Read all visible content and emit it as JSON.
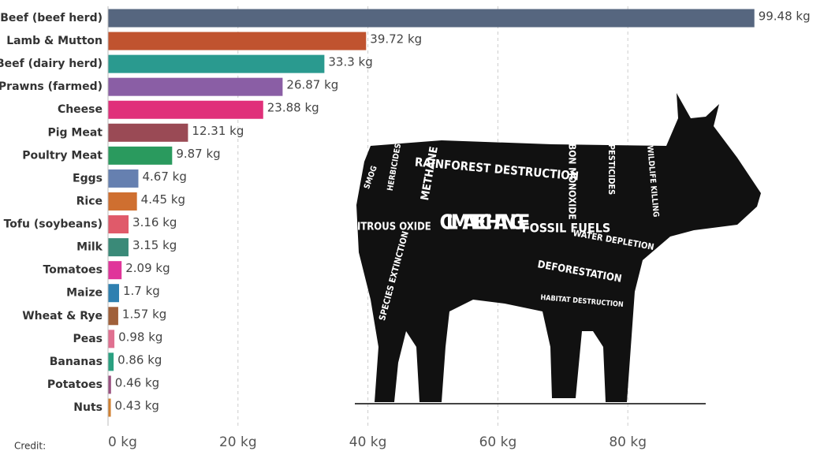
{
  "chart_data": {
    "type": "bar",
    "orientation": "horizontal",
    "categories": [
      "Beef (beef herd)",
      "Lamb & Mutton",
      "Beef (dairy herd)",
      "Prawns (farmed)",
      "Cheese",
      "Pig Meat",
      "Poultry Meat",
      "Eggs",
      "Rice",
      "Tofu (soybeans)",
      "Milk",
      "Tomatoes",
      "Maize",
      "Wheat & Rye",
      "Peas",
      "Bananas",
      "Potatoes",
      "Nuts"
    ],
    "values": [
      99.48,
      39.72,
      33.3,
      26.87,
      23.88,
      12.31,
      9.87,
      4.67,
      4.45,
      3.16,
      3.15,
      2.09,
      1.7,
      1.57,
      0.98,
      0.86,
      0.46,
      0.43
    ],
    "value_labels": [
      "99.48 kg",
      "39.72 kg",
      "33.3 kg",
      "26.87 kg",
      "23.88 kg",
      "12.31 kg",
      "9.87 kg",
      "4.67 kg",
      "4.45 kg",
      "3.16 kg",
      "3.15 kg",
      "2.09 kg",
      "1.7 kg",
      "1.57 kg",
      "0.98 kg",
      "0.86 kg",
      "0.46 kg",
      "0.43 kg"
    ],
    "colors": [
      "#56667f",
      "#c0532f",
      "#2a9a8f",
      "#8a5ea5",
      "#e0307a",
      "#9a4a55",
      "#2a9a5e",
      "#6680b0",
      "#cf6f30",
      "#e05a6a",
      "#3a8a78",
      "#e0359a",
      "#2f80b0",
      "#a0603a",
      "#e07090",
      "#2aa080",
      "#9a5080",
      "#d08030"
    ],
    "xlim": [
      0,
      100
    ],
    "xticks": [
      {
        "value": 0,
        "label": "0 kg"
      },
      {
        "value": 20,
        "label": "20 kg"
      },
      {
        "value": 40,
        "label": "40 kg"
      },
      {
        "value": 60,
        "label": "60 kg"
      },
      {
        "value": 80,
        "label": "80 kg"
      }
    ],
    "grid": true,
    "credit": "Credit:"
  },
  "illustration": {
    "labels": [
      "SMOG",
      "HERBICIDES",
      "METHANE",
      "RAINFOREST DESTRUCTION",
      "CARBON MONOXIDE",
      "PESTICIDES",
      "WILDLIFE KILLING",
      "NITROUS OXIDE",
      "CLIMATE CHANGE",
      "FOSSIL FUELS",
      "WATER DEPLETION",
      "SPECIES EXTINCTION",
      "DEFORESTATION",
      "HABITAT DESTRUCTION"
    ]
  }
}
